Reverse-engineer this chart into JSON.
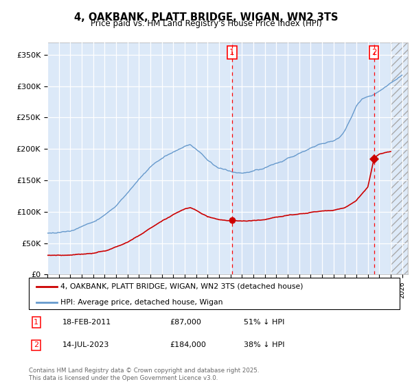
{
  "title_line1": "4, OAKBANK, PLATT BRIDGE, WIGAN, WN2 3TS",
  "title_line2": "Price paid vs. HM Land Registry's House Price Index (HPI)",
  "background_color": "#dce9f8",
  "hpi_color": "#6699cc",
  "price_color": "#cc0000",
  "shade_color": "#ccddf5",
  "ylim": [
    0,
    370000
  ],
  "xlim_start": 1995.0,
  "xlim_end": 2026.5,
  "yticks": [
    0,
    50000,
    100000,
    150000,
    200000,
    250000,
    300000,
    350000
  ],
  "ytick_labels": [
    "£0",
    "£50K",
    "£100K",
    "£150K",
    "£200K",
    "£250K",
    "£300K",
    "£350K"
  ],
  "sale1_x": 2011.13,
  "sale1_y": 87000,
  "sale2_x": 2023.54,
  "sale2_y": 184000,
  "legend_label_red": "4, OAKBANK, PLATT BRIDGE, WIGAN, WN2 3TS (detached house)",
  "legend_label_blue": "HPI: Average price, detached house, Wigan",
  "annotation1_date": "18-FEB-2011",
  "annotation1_price": "£87,000",
  "annotation1_hpi": "51% ↓ HPI",
  "annotation2_date": "14-JUL-2023",
  "annotation2_price": "£184,000",
  "annotation2_hpi": "38% ↓ HPI",
  "footer": "Contains HM Land Registry data © Crown copyright and database right 2025.\nThis data is licensed under the Open Government Licence v3.0.",
  "hpi_years": [
    1995,
    1996,
    1997,
    1998,
    1999,
    2000,
    2001,
    2002,
    2003,
    2004,
    2005,
    2006,
    2007,
    2007.5,
    2008,
    2008.5,
    2009,
    2009.5,
    2010,
    2010.5,
    2011,
    2011.5,
    2012,
    2012.5,
    2013,
    2013.5,
    2014,
    2014.5,
    2015,
    2015.5,
    2016,
    2016.5,
    2017,
    2017.5,
    2018,
    2018.5,
    2019,
    2019.5,
    2020,
    2020.5,
    2021,
    2021.5,
    2022,
    2022.5,
    2023,
    2023.5,
    2024,
    2024.5,
    2025,
    2025.5,
    2026
  ],
  "hpi_vals": [
    65000,
    67000,
    70000,
    76000,
    84000,
    95000,
    110000,
    130000,
    152000,
    172000,
    185000,
    195000,
    205000,
    207000,
    200000,
    192000,
    182000,
    175000,
    170000,
    167000,
    165000,
    163000,
    162000,
    163000,
    165000,
    167000,
    170000,
    173000,
    177000,
    180000,
    185000,
    188000,
    193000,
    197000,
    202000,
    206000,
    208000,
    210000,
    212000,
    218000,
    230000,
    248000,
    268000,
    280000,
    283000,
    286000,
    292000,
    298000,
    305000,
    310000,
    318000
  ],
  "price_years": [
    1995,
    1996,
    1997,
    1998,
    1999,
    2000,
    2001,
    2002,
    2003,
    2004,
    2005,
    2006,
    2007,
    2007.5,
    2008,
    2009,
    2010,
    2011.0,
    2011.13,
    2011.5,
    2012,
    2013,
    2014,
    2015,
    2016,
    2017,
    2018,
    2019,
    2020,
    2021,
    2022,
    2023.0,
    2023.54,
    2024,
    2025
  ],
  "price_vals": [
    30000,
    30500,
    31000,
    32500,
    34000,
    38000,
    44000,
    52000,
    62000,
    74000,
    85000,
    96000,
    105000,
    107000,
    102000,
    92000,
    87000,
    85000,
    87000,
    86000,
    85000,
    86000,
    88000,
    91000,
    94000,
    97000,
    99000,
    101000,
    103000,
    107000,
    118000,
    140000,
    184000,
    192000,
    196000
  ]
}
